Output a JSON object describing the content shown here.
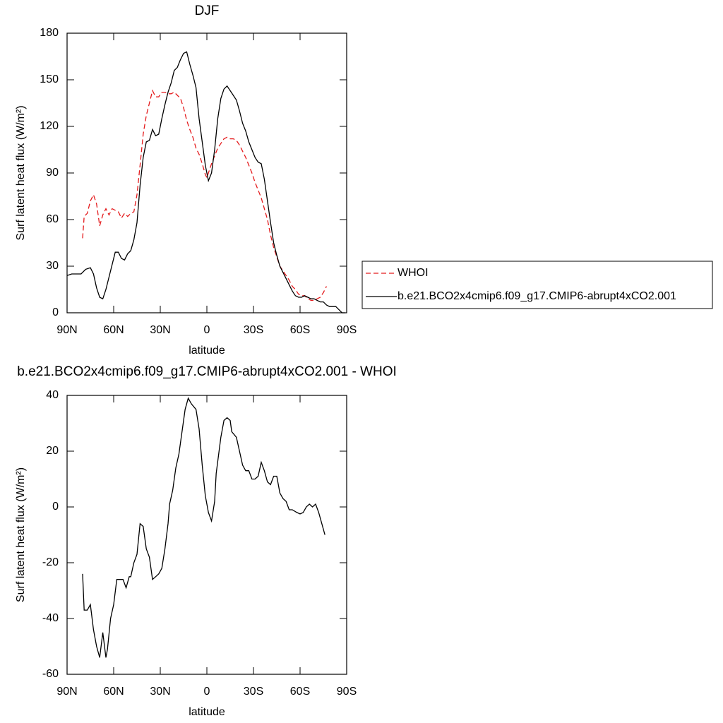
{
  "chart_data": [
    {
      "type": "line",
      "title": "DJF",
      "xlabel": "latitude",
      "ylabel": "Surf latent heat flux (W/m²)",
      "xlim": [
        90,
        -90
      ],
      "xticks": [
        {
          "value": 90,
          "label": "90N"
        },
        {
          "value": 60,
          "label": "60N"
        },
        {
          "value": 30,
          "label": "30N"
        },
        0,
        {
          "value": -30,
          "label": "30S"
        },
        {
          "value": -60,
          "label": "60S"
        },
        {
          "value": -90,
          "label": "90S"
        }
      ],
      "ylim": [
        0,
        180
      ],
      "yticks": [
        0,
        30,
        60,
        90,
        120,
        150,
        180
      ],
      "legend": "right",
      "series": [
        {
          "name": "WHOI",
          "color": "#e41a1c",
          "dash": true,
          "x": [
            80,
            79,
            77,
            75,
            73,
            71,
            69,
            67,
            65,
            63,
            61,
            59,
            57,
            55,
            53,
            51,
            49,
            47,
            45,
            43,
            41,
            39,
            37,
            35,
            33,
            31,
            29,
            27,
            25,
            23,
            21,
            19,
            17,
            15,
            13,
            11,
            9,
            7,
            5,
            3,
            1,
            0,
            -1,
            -3,
            -5,
            -7,
            -9,
            -11,
            -13,
            -15,
            -17,
            -19,
            -21,
            -23,
            -25,
            -27,
            -29,
            -31,
            -33,
            -35,
            -37,
            -39,
            -41,
            -43,
            -45,
            -47,
            -49,
            -51,
            -53,
            -55,
            -57,
            -59,
            -61,
            -63,
            -65,
            -67,
            -69,
            -71,
            -73,
            -75,
            -77
          ],
          "values": [
            48,
            62,
            64,
            72,
            76,
            70,
            56,
            63,
            67,
            63,
            67,
            66,
            65,
            61,
            64,
            62,
            64,
            65,
            76,
            95,
            115,
            127,
            135,
            143,
            139,
            139,
            142,
            142,
            141,
            141,
            142,
            140,
            138,
            132,
            124,
            118,
            113,
            106,
            102,
            96,
            89,
            87,
            90,
            96,
            101,
            106,
            109,
            112,
            113,
            112,
            112,
            111,
            108,
            104,
            100,
            95,
            90,
            84,
            79,
            74,
            67,
            60,
            50,
            42,
            36,
            30,
            27,
            24,
            21,
            17,
            15,
            12,
            11,
            11,
            9,
            8,
            8,
            9,
            10,
            13,
            17
          ]
        },
        {
          "name": "b.e21.BCO2x4cmip6.f09_g17.CMIP6-abrupt4xCO2.001",
          "color": "#000000",
          "dash": false,
          "x": [
            90,
            87,
            84,
            81,
            78,
            75,
            73,
            71,
            69,
            67,
            65,
            63,
            61,
            59,
            57,
            55,
            53,
            51,
            49,
            47,
            45,
            43,
            41,
            39,
            37,
            35,
            33,
            31,
            29,
            27,
            25,
            23,
            21,
            19,
            17,
            15,
            13,
            11,
            9,
            7,
            5,
            3,
            1,
            -1,
            -3,
            -5,
            -7,
            -9,
            -11,
            -13,
            -15,
            -17,
            -19,
            -21,
            -23,
            -25,
            -27,
            -29,
            -31,
            -33,
            -35,
            -37,
            -39,
            -41,
            -43,
            -45,
            -47,
            -49,
            -51,
            -53,
            -55,
            -57,
            -59,
            -61,
            -63,
            -65,
            -67,
            -69,
            -71,
            -73,
            -75,
            -77,
            -79,
            -81,
            -83,
            -85,
            -87,
            -89
          ],
          "values": [
            24,
            25,
            25,
            25,
            28,
            29,
            25,
            16,
            10,
            9,
            15,
            23,
            31,
            39,
            39,
            35,
            34,
            38,
            40,
            47,
            58,
            82,
            100,
            110,
            111,
            118,
            114,
            115,
            125,
            134,
            142,
            148,
            156,
            158,
            163,
            167,
            168,
            160,
            153,
            145,
            125,
            110,
            95,
            85,
            90,
            105,
            125,
            138,
            144,
            146,
            143,
            140,
            137,
            130,
            122,
            117,
            110,
            105,
            100,
            97,
            96,
            86,
            72,
            58,
            45,
            37,
            30,
            26,
            22,
            18,
            14,
            11,
            10,
            10,
            11,
            10,
            9,
            9,
            8,
            7,
            7,
            5,
            4,
            4,
            4,
            2,
            0,
            0
          ]
        }
      ]
    },
    {
      "type": "line",
      "title": "b.e21.BCO2x4cmip6.f09_g17.CMIP6-abrupt4xCO2.001 - WHOI",
      "xlabel": "latitude",
      "ylabel": "Surf latent heat flux (W/m²)",
      "xlim": [
        90,
        -90
      ],
      "xticks": [
        {
          "value": 90,
          "label": "90N"
        },
        {
          "value": 60,
          "label": "60N"
        },
        {
          "value": 30,
          "label": "30N"
        },
        0,
        {
          "value": -30,
          "label": "30S"
        },
        {
          "value": -60,
          "label": "60S"
        },
        {
          "value": -90,
          "label": "90S"
        }
      ],
      "ylim": [
        -60,
        40
      ],
      "yticks": [
        -60,
        -40,
        -20,
        0,
        20,
        40
      ],
      "series": [
        {
          "color": "#000000",
          "dash": false,
          "x": [
            80,
            79,
            77,
            75,
            73,
            71,
            69,
            67,
            65,
            64,
            62,
            60,
            58,
            56,
            54,
            52,
            50,
            49,
            47,
            45,
            43,
            41,
            39,
            37,
            35,
            33,
            31,
            29,
            27,
            25,
            24,
            22,
            20,
            18,
            16,
            14,
            12,
            10,
            7,
            5,
            3,
            1,
            -1,
            -3,
            -5,
            -6,
            -9,
            -11,
            -13,
            -15,
            -16,
            -19,
            -21,
            -23,
            -25,
            -27,
            -29,
            -31,
            -33,
            -35,
            -37,
            -39,
            -41,
            -43,
            -45,
            -47,
            -49,
            -51,
            -53,
            -55,
            -58,
            -60,
            -62,
            -64,
            -66,
            -68,
            -70,
            -72,
            -74,
            -76
          ],
          "values": [
            -24,
            -37,
            -37,
            -35,
            -44,
            -50,
            -54,
            -45,
            -54,
            -51,
            -40,
            -35,
            -26,
            -26,
            -26,
            -29,
            -25,
            -25,
            -20,
            -17,
            -6,
            -7,
            -15,
            -18,
            -26,
            -25,
            -24,
            -22,
            -15,
            -6,
            1,
            6,
            14,
            19,
            27,
            35,
            39,
            37,
            35,
            28,
            15,
            4,
            -2,
            -5,
            2,
            12,
            25,
            31,
            32,
            31,
            27,
            25,
            20,
            15,
            13,
            13,
            10,
            10,
            11,
            16,
            13,
            9,
            8,
            11,
            11,
            5,
            3,
            2,
            -1,
            -1,
            -2,
            -2.5,
            -2,
            0,
            1,
            0,
            1,
            -2,
            -6,
            -10
          ]
        }
      ]
    }
  ]
}
